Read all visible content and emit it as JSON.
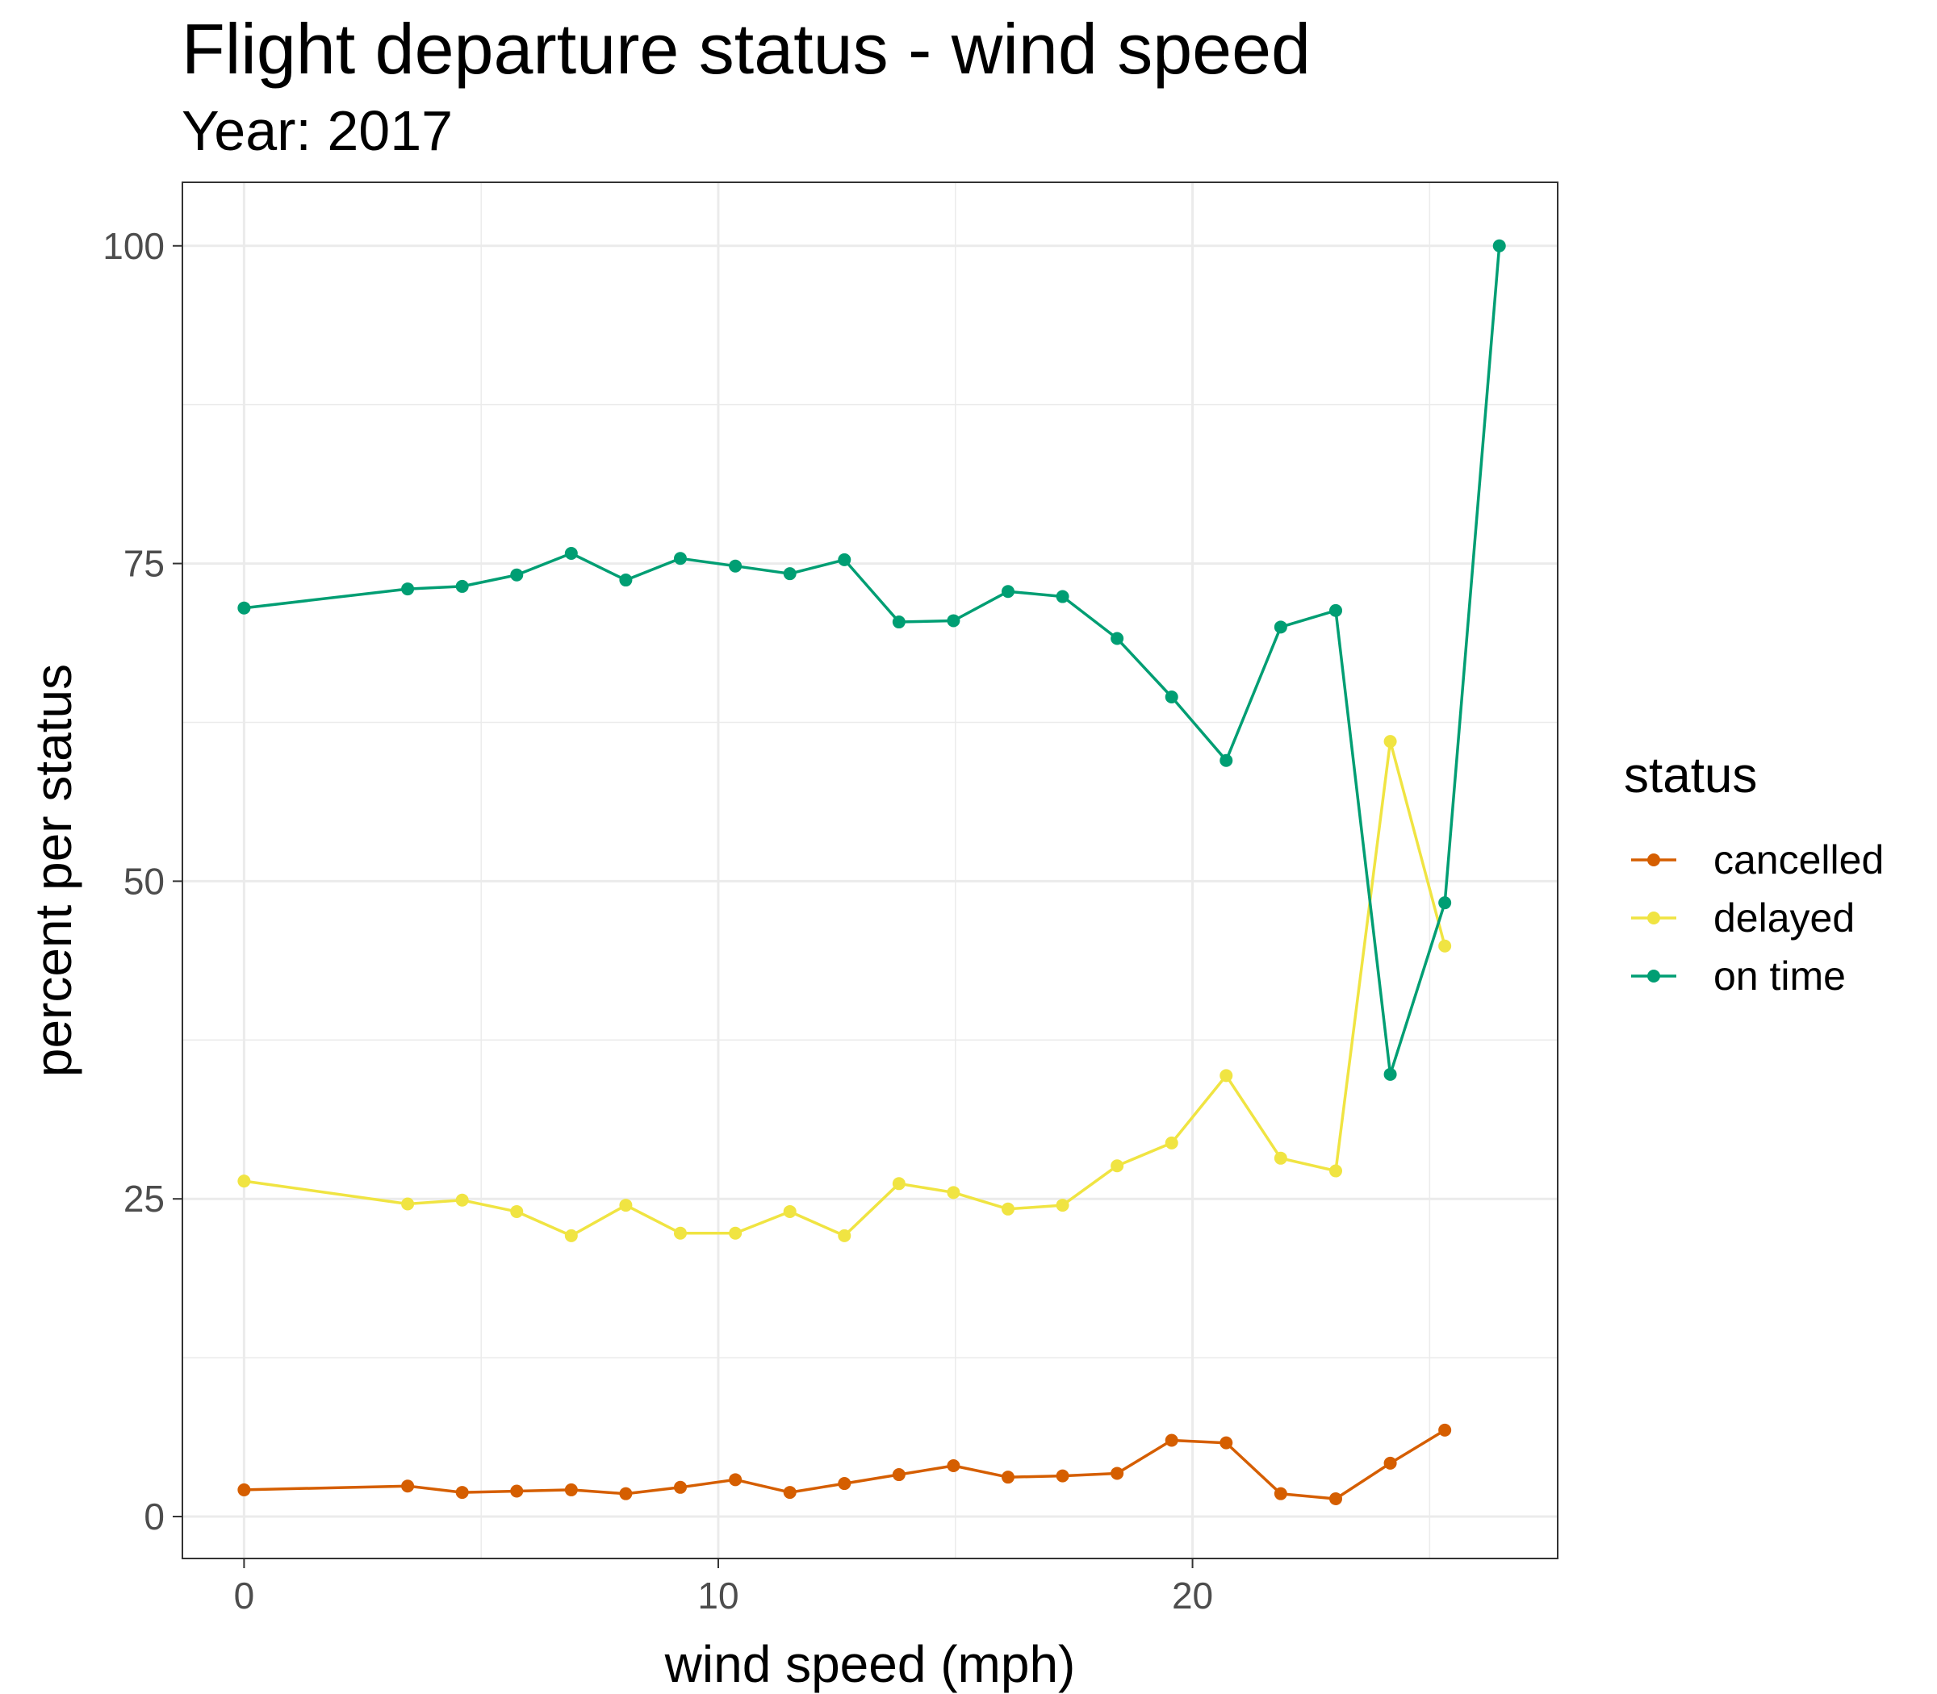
{
  "chart_data": {
    "type": "line",
    "title": "Flight departure status - wind speed",
    "subtitle": "Year: 2017",
    "xlabel": "wind speed (mph)",
    "ylabel": "percent per status",
    "xlim": [
      -1.3,
      27.7
    ],
    "ylim": [
      -3.3,
      105
    ],
    "xticks": [
      0,
      10,
      20
    ],
    "yticks": [
      0,
      25,
      50,
      75,
      100
    ],
    "grid": true,
    "legend": {
      "title": "status",
      "position": "right"
    },
    "series": [
      {
        "name": "cancelled",
        "color": "#D55E00",
        "x": [
          0,
          3.45,
          4.6,
          5.75,
          6.9,
          8.05,
          9.2,
          10.36,
          11.51,
          12.66,
          13.81,
          14.96,
          16.11,
          17.26,
          18.41,
          19.56,
          20.71,
          21.86,
          23.02,
          24.17,
          25.32
        ],
        "y": [
          2.1,
          2.4,
          1.9,
          2.0,
          2.1,
          1.8,
          2.3,
          2.9,
          1.9,
          2.6,
          3.3,
          4.0,
          3.1,
          3.2,
          3.4,
          6.0,
          5.8,
          1.8,
          1.4,
          4.2,
          6.8
        ]
      },
      {
        "name": "delayed",
        "color": "#F0E442",
        "x": [
          0,
          3.45,
          4.6,
          5.75,
          6.9,
          8.05,
          9.2,
          10.36,
          11.51,
          12.66,
          13.81,
          14.96,
          16.11,
          17.26,
          18.41,
          19.56,
          20.71,
          21.86,
          23.02,
          24.17,
          25.32
        ],
        "y": [
          26.4,
          24.6,
          24.9,
          24.0,
          22.1,
          24.5,
          22.3,
          22.3,
          24.0,
          22.1,
          26.2,
          25.5,
          24.2,
          24.5,
          27.6,
          29.4,
          34.7,
          28.2,
          27.2,
          61.0,
          44.9
        ]
      },
      {
        "name": "on time",
        "color": "#009E73",
        "x": [
          0,
          3.45,
          4.6,
          5.75,
          6.9,
          8.05,
          9.2,
          10.36,
          11.51,
          12.66,
          13.81,
          14.96,
          16.11,
          17.26,
          18.41,
          19.56,
          20.71,
          21.86,
          23.02,
          24.17,
          25.32,
          26.47
        ],
        "y": [
          71.5,
          73.0,
          73.2,
          74.1,
          75.8,
          73.7,
          75.4,
          74.8,
          74.2,
          75.3,
          70.4,
          70.5,
          72.8,
          72.4,
          69.1,
          64.5,
          59.5,
          70.0,
          71.3,
          34.8,
          48.3,
          100
        ]
      }
    ]
  }
}
